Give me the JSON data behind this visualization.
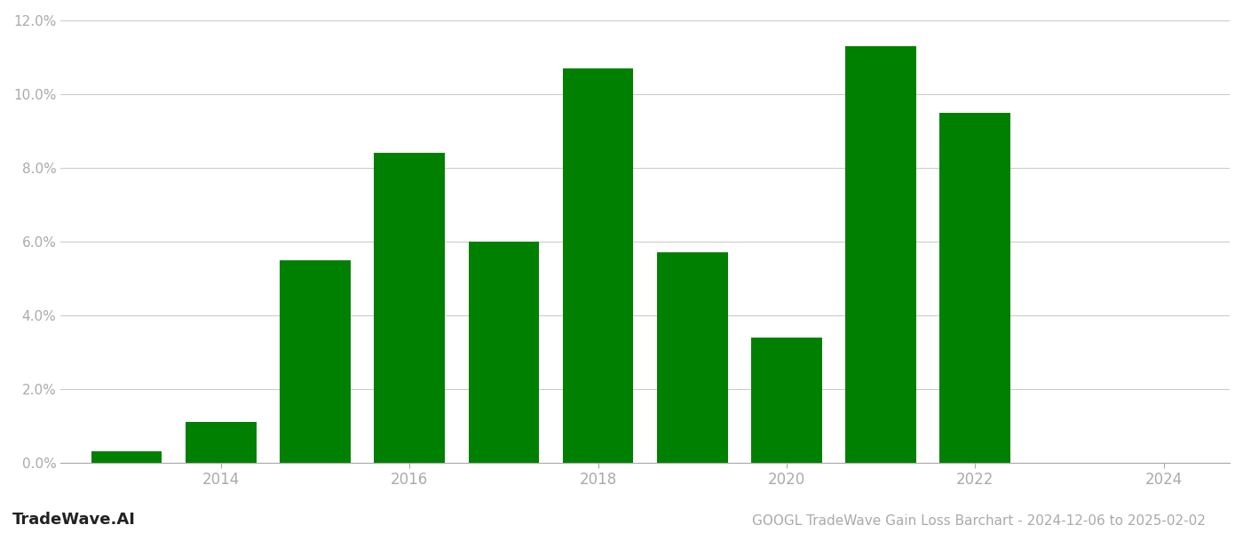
{
  "years": [
    2013,
    2014,
    2015,
    2016,
    2017,
    2018,
    2019,
    2020,
    2021,
    2022,
    2023
  ],
  "values": [
    0.003,
    0.011,
    0.055,
    0.084,
    0.06,
    0.107,
    0.057,
    0.034,
    0.113,
    0.095,
    0.0
  ],
  "bar_color": "#008000",
  "title": "GOOGL TradeWave Gain Loss Barchart - 2024-12-06 to 2025-02-02",
  "watermark": "TradeWave.AI",
  "xlim": [
    2012.3,
    2024.7
  ],
  "ylim": [
    0.0,
    0.122
  ],
  "yticks": [
    0.0,
    0.02,
    0.04,
    0.06,
    0.08,
    0.1,
    0.12
  ],
  "xticks": [
    2014,
    2016,
    2018,
    2020,
    2022,
    2024
  ],
  "background_color": "#ffffff",
  "grid_color": "#cccccc",
  "tick_color": "#aaaaaa",
  "title_fontsize": 11,
  "watermark_fontsize": 13,
  "bar_width": 0.75
}
